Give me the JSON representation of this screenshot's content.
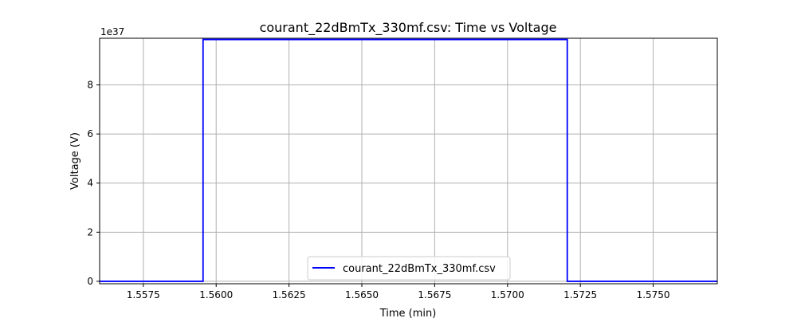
{
  "chart_data": {
    "type": "line",
    "title": "courant_22dBmTx_330mf.csv: Time vs Voltage",
    "xlabel": "Time (min)",
    "ylabel": "Voltage (V)",
    "y_offset_label": "1e37",
    "y_scale": 1e+37,
    "xlim": [
      1.556,
      1.5772
    ],
    "ylim": [
      -0.1,
      9.9
    ],
    "x_ticks": [
      1.5575,
      1.56,
      1.5625,
      1.565,
      1.5675,
      1.57,
      1.5725,
      1.575
    ],
    "x_tick_labels": [
      "1.5575",
      "1.5600",
      "1.5625",
      "1.5650",
      "1.5675",
      "1.5700",
      "1.5725",
      "1.5750"
    ],
    "y_ticks": [
      0,
      2,
      4,
      6,
      8
    ],
    "y_tick_labels": [
      "0",
      "2",
      "4",
      "6",
      "8"
    ],
    "grid": true,
    "legend_position": "lower-center",
    "series": [
      {
        "name": "courant_22dBmTx_330mf.csv",
        "color": "#0000ff",
        "x": [
          1.556,
          1.55955,
          1.55955,
          1.55965,
          1.572,
          1.57205,
          1.57205,
          1.5772
        ],
        "y": [
          0,
          0,
          9.85,
          9.85,
          9.85,
          9.85,
          0,
          0
        ]
      }
    ]
  }
}
